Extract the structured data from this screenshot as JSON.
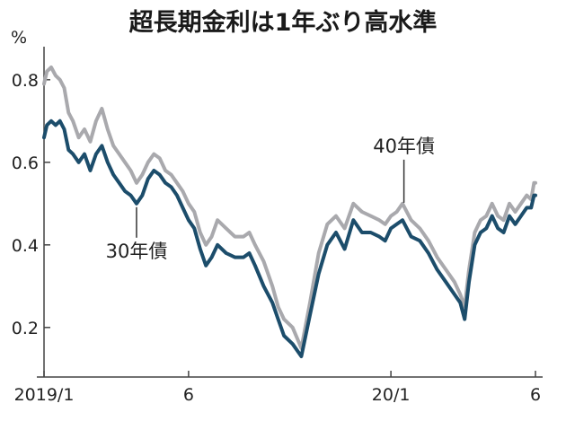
{
  "chart_data": {
    "type": "line",
    "title": "超長期金利は1年ぶり高水準",
    "ylabel": "%",
    "ylim": [
      0.08,
      0.88
    ],
    "yticks": [
      0.2,
      0.4,
      0.6,
      0.8
    ],
    "ytick_labels": [
      "0.2",
      "0.4",
      "0.6",
      "0.8"
    ],
    "xlim": [
      0,
      17
    ],
    "xticks": [
      0,
      5,
      12,
      17
    ],
    "xtick_labels": [
      "2019/1",
      "6",
      "20/1",
      "6"
    ],
    "grid": false,
    "legend": "none",
    "series": [
      {
        "key": "s40",
        "annotation": "40年債",
        "color": "#a9a9ad",
        "x": [
          0,
          0.1,
          0.25,
          0.4,
          0.55,
          0.7,
          0.85,
          1.0,
          1.2,
          1.4,
          1.6,
          1.8,
          2.0,
          2.2,
          2.4,
          2.6,
          2.8,
          3.0,
          3.2,
          3.4,
          3.6,
          3.8,
          4.0,
          4.2,
          4.4,
          4.6,
          4.8,
          5.0,
          5.2,
          5.4,
          5.6,
          5.8,
          6.0,
          6.3,
          6.6,
          6.9,
          7.1,
          7.3,
          7.6,
          7.9,
          8.1,
          8.3,
          8.6,
          8.9,
          9.2,
          9.5,
          9.8,
          10.1,
          10.4,
          10.7,
          11.0,
          11.3,
          11.6,
          11.8,
          12.0,
          12.2,
          12.4,
          12.7,
          13.0,
          13.3,
          13.6,
          13.9,
          14.2,
          14.4,
          14.55,
          14.7,
          14.9,
          15.1,
          15.3,
          15.5,
          15.7,
          15.9,
          16.1,
          16.3,
          16.5,
          16.7,
          16.85,
          16.95,
          17.0
        ],
        "y": [
          0.79,
          0.82,
          0.83,
          0.81,
          0.8,
          0.78,
          0.72,
          0.7,
          0.66,
          0.68,
          0.65,
          0.7,
          0.73,
          0.68,
          0.64,
          0.62,
          0.6,
          0.58,
          0.55,
          0.57,
          0.6,
          0.62,
          0.61,
          0.58,
          0.57,
          0.55,
          0.53,
          0.5,
          0.48,
          0.43,
          0.4,
          0.42,
          0.46,
          0.44,
          0.42,
          0.42,
          0.43,
          0.4,
          0.36,
          0.3,
          0.25,
          0.22,
          0.2,
          0.15,
          0.26,
          0.38,
          0.45,
          0.47,
          0.44,
          0.5,
          0.48,
          0.47,
          0.46,
          0.45,
          0.47,
          0.48,
          0.5,
          0.46,
          0.44,
          0.41,
          0.37,
          0.34,
          0.31,
          0.28,
          0.25,
          0.34,
          0.43,
          0.46,
          0.47,
          0.5,
          0.47,
          0.46,
          0.5,
          0.48,
          0.5,
          0.52,
          0.51,
          0.55,
          0.55
        ]
      },
      {
        "key": "s30",
        "annotation": "30年債",
        "color": "#1c4d6b",
        "x": [
          0,
          0.1,
          0.25,
          0.4,
          0.55,
          0.7,
          0.85,
          1.0,
          1.2,
          1.4,
          1.6,
          1.8,
          2.0,
          2.2,
          2.4,
          2.6,
          2.8,
          3.0,
          3.2,
          3.4,
          3.6,
          3.8,
          4.0,
          4.2,
          4.4,
          4.6,
          4.8,
          5.0,
          5.2,
          5.4,
          5.6,
          5.8,
          6.0,
          6.3,
          6.6,
          6.9,
          7.1,
          7.3,
          7.6,
          7.9,
          8.1,
          8.3,
          8.6,
          8.9,
          9.2,
          9.5,
          9.8,
          10.1,
          10.4,
          10.7,
          11.0,
          11.3,
          11.6,
          11.8,
          12.0,
          12.2,
          12.4,
          12.7,
          13.0,
          13.3,
          13.6,
          13.9,
          14.2,
          14.4,
          14.55,
          14.7,
          14.9,
          15.1,
          15.3,
          15.5,
          15.7,
          15.9,
          16.1,
          16.3,
          16.5,
          16.7,
          16.85,
          16.95,
          17.0
        ],
        "y": [
          0.66,
          0.69,
          0.7,
          0.69,
          0.7,
          0.68,
          0.63,
          0.62,
          0.6,
          0.62,
          0.58,
          0.62,
          0.64,
          0.6,
          0.57,
          0.55,
          0.53,
          0.52,
          0.5,
          0.52,
          0.56,
          0.58,
          0.57,
          0.55,
          0.54,
          0.52,
          0.49,
          0.46,
          0.44,
          0.39,
          0.35,
          0.37,
          0.4,
          0.38,
          0.37,
          0.37,
          0.38,
          0.35,
          0.3,
          0.26,
          0.22,
          0.18,
          0.16,
          0.13,
          0.23,
          0.33,
          0.4,
          0.43,
          0.39,
          0.46,
          0.43,
          0.43,
          0.42,
          0.41,
          0.44,
          0.45,
          0.46,
          0.42,
          0.41,
          0.38,
          0.34,
          0.31,
          0.28,
          0.26,
          0.22,
          0.31,
          0.4,
          0.43,
          0.44,
          0.47,
          0.44,
          0.43,
          0.47,
          0.45,
          0.47,
          0.49,
          0.49,
          0.52,
          0.52
        ]
      }
    ],
    "annotations": [
      {
        "series": "s40",
        "text": "40年債",
        "at_x": 12.45
      },
      {
        "series": "s30",
        "text": "30年債",
        "at_x": 3.2
      }
    ]
  }
}
